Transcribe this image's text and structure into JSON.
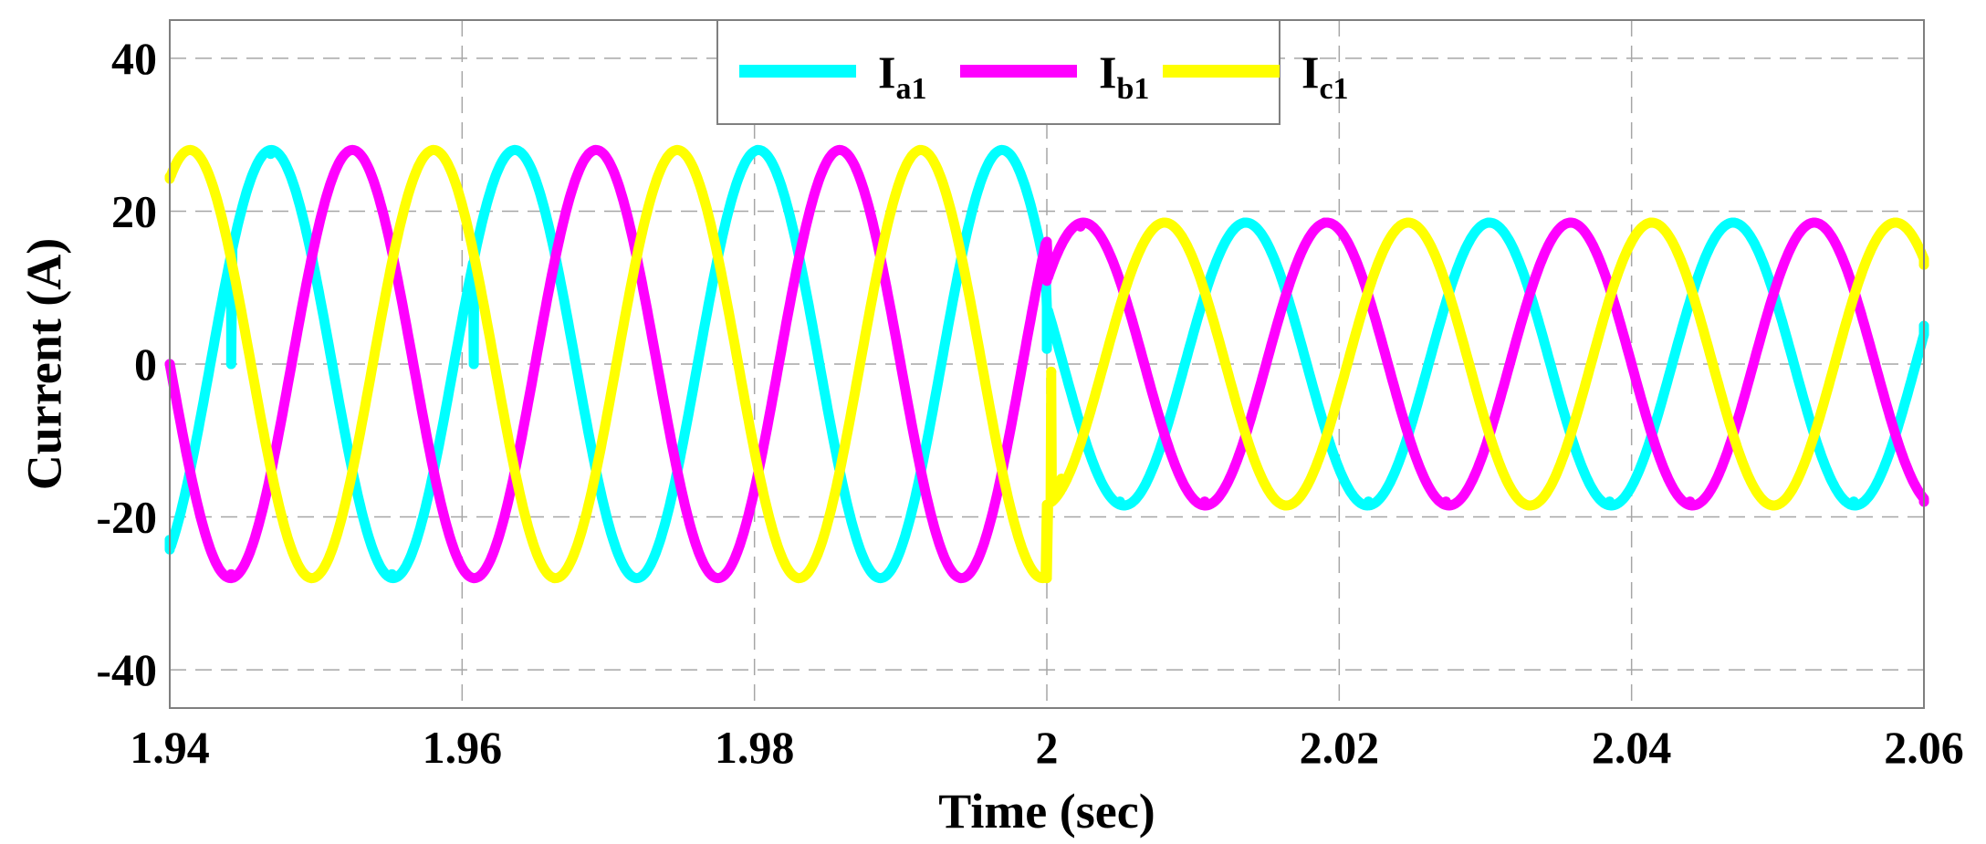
{
  "chart_data": {
    "type": "line",
    "title": "",
    "xlabel": "Time (sec)",
    "ylabel": "Current (A)",
    "xlim": [
      1.94,
      2.06
    ],
    "ylim": [
      -45,
      45
    ],
    "xticks": [
      1.94,
      1.96,
      1.98,
      2,
      2.02,
      2.04,
      2.06
    ],
    "xtick_labels": [
      "1.94",
      "1.96",
      "1.98",
      "2",
      "2.02",
      "2.04",
      "2.06"
    ],
    "yticks": [
      40,
      20,
      0,
      -20,
      -40
    ],
    "ytick_labels": [
      "40",
      "20",
      "0",
      "-20",
      "-40"
    ],
    "grid": true,
    "legend_position": "top-center",
    "frequency_hz": 60,
    "series": [
      {
        "name": "I",
        "subscript": "a1",
        "color": "#00ffff",
        "amplitude_before": 28,
        "amplitude_after": 18.5,
        "phase_deg": -60,
        "points": [
          [
            1.94,
            -23.0
          ],
          [
            1.9442,
            0.0
          ],
          [
            1.9469,
            27.5
          ],
          [
            1.9497,
            16.0
          ],
          [
            1.9552,
            -27.5
          ],
          [
            1.9608,
            0.0
          ],
          [
            1.9636,
            28.0
          ],
          [
            1.9719,
            -28.0
          ],
          [
            1.9802,
            28.0
          ],
          [
            1.9886,
            -28.0
          ],
          [
            1.9969,
            28.0
          ],
          [
            2.0,
            2.0
          ],
          [
            2.005,
            -18.0
          ],
          [
            2.0135,
            18.5
          ],
          [
            2.022,
            -18.0
          ],
          [
            2.0302,
            18.5
          ],
          [
            2.0385,
            -18.0
          ],
          [
            2.047,
            18.5
          ],
          [
            2.0552,
            -18.0
          ],
          [
            2.06,
            5.0
          ]
        ]
      },
      {
        "name": "I",
        "subscript": "b1",
        "color": "#ff00ff",
        "amplitude_before": 28,
        "amplitude_after": 18.5,
        "phase_deg": 180,
        "points": [
          [
            1.94,
            0.0
          ],
          [
            1.9442,
            -27.5
          ],
          [
            1.9525,
            28.0
          ],
          [
            1.9608,
            -28.0
          ],
          [
            1.9691,
            28.0
          ],
          [
            1.9775,
            -28.0
          ],
          [
            1.9858,
            28.0
          ],
          [
            1.9941,
            -28.0
          ],
          [
            2.0,
            16.0
          ],
          [
            2.0023,
            18.0
          ],
          [
            2.0108,
            -18.0
          ],
          [
            2.019,
            18.5
          ],
          [
            2.0273,
            -18.0
          ],
          [
            2.0358,
            18.5
          ],
          [
            2.044,
            -18.0
          ],
          [
            2.0525,
            18.5
          ],
          [
            2.06,
            -18.0
          ]
        ]
      },
      {
        "name": "I",
        "subscript": "c1",
        "color": "#ffff00",
        "amplitude_before": 28,
        "amplitude_after": 18.5,
        "phase_deg": 60,
        "points": [
          [
            1.94,
            24.5
          ],
          [
            1.9414,
            28.0
          ],
          [
            1.9497,
            -28.0
          ],
          [
            1.958,
            28.0
          ],
          [
            1.9663,
            -28.0
          ],
          [
            1.9747,
            28.0
          ],
          [
            1.983,
            -28.0
          ],
          [
            1.9913,
            28.0
          ],
          [
            2.0,
            -28.0
          ],
          [
            2.0003,
            -1.0
          ],
          [
            2.001,
            -15.0
          ],
          [
            2.008,
            18.5
          ],
          [
            2.0163,
            -18.5
          ],
          [
            2.0247,
            18.5
          ],
          [
            2.033,
            -18.5
          ],
          [
            2.0413,
            18.5
          ],
          [
            2.0497,
            -18.5
          ],
          [
            2.058,
            18.5
          ],
          [
            2.06,
            13.0
          ]
        ]
      }
    ]
  }
}
